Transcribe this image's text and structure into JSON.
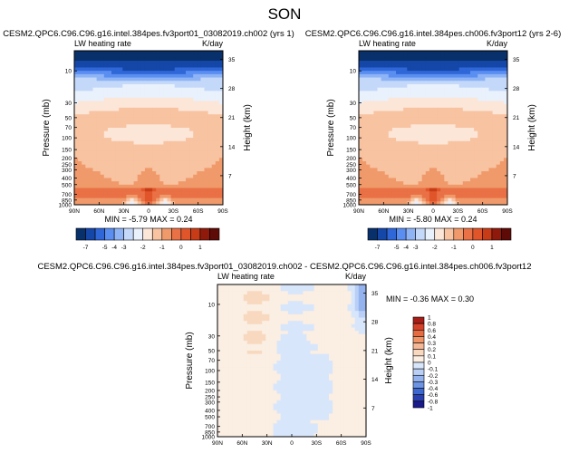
{
  "figure": {
    "title": "SON"
  },
  "colors": {
    "neg": [
      "#08306b",
      "#1547a8",
      "#2f67d8",
      "#5a8ef0",
      "#8fb4f6",
      "#c4d8f9",
      "#e9f1fc"
    ],
    "pos": [
      "#fce6d8",
      "#f8c3a1",
      "#f09a6b",
      "#e97145",
      "#e1552b",
      "#c73b17",
      "#8f1a0c",
      "#5e0a06"
    ],
    "diff": {
      "-1": "#1a1a8c",
      "-0.8": "#2a3fb0",
      "-0.6": "#3d68cf",
      "-0.4": "#6d94e3",
      "-0.3": "#93b2ee",
      "-0.2": "#b9cff6",
      "-0.1": "#d8e6fb",
      "0": "#fbeee2",
      "0.1": "#f8d9c0",
      "0.2": "#f5b896",
      "0.4": "#ef9568",
      "0.6": "#e66c43",
      "0.8": "#d4422a",
      "1": "#a71d17"
    }
  },
  "panels": [
    {
      "case": "CESM2.QPC6.C96.C96.g16.intel.384pes.fv3port01_03082019.ch002 (yrs 1)",
      "left_label": "LW heating rate",
      "right_label": "K/day",
      "ylabel": "Pressure (mb)",
      "ylabel_right": "Height (km)",
      "stats": "MIN = -5.79  MAX =  0.24"
    },
    {
      "case": "CESM2.QPC6.C96.C96.g16.intel.384pes.ch006.fv3port12 (yrs 2-6)",
      "left_label": "LW heating rate",
      "right_label": "K/day",
      "ylabel": "Pressure (mb)",
      "ylabel_right": "Height (km)",
      "stats": "MIN = -5.80  MAX =  0.24"
    },
    {
      "case": "CESM2.QPC6.C96.C96.g16.intel.384pes.fv3port01_03082019.ch002 - CESM2.QPC6.C96.C96.g16.intel.384pes.ch006.fv3port12",
      "left_label": "LW heating rate",
      "right_label": "K/day",
      "ylabel": "Pressure (mb)",
      "ylabel_right": "Height (km)",
      "stats": "MIN = -0.36  MAX =  0.30"
    }
  ],
  "chart_data": {
    "type": "heatmap",
    "title": "SON",
    "x_ticks": [
      "90N",
      "60N",
      "30N",
      "0",
      "30S",
      "60S",
      "90S"
    ],
    "y_ticks_pressure": [
      "10",
      "30",
      "50",
      "70",
      "100",
      "150",
      "200",
      "250",
      "300",
      "400",
      "500",
      "700",
      "850",
      "1000"
    ],
    "y_ticks_pressure_diff": [
      "10",
      "30",
      "50",
      "70",
      "100",
      "150",
      "200",
      "250",
      "300",
      "400",
      "500",
      "700",
      "850",
      "1000"
    ],
    "y_ticks_height": [
      "35",
      "28",
      "21",
      "14",
      "7"
    ],
    "colorbar_main": {
      "labels": [
        "-7",
        "-5",
        "-4",
        "-3",
        "-2",
        "-1",
        "0",
        "1"
      ],
      "levels": [
        -7.5,
        -6,
        -5,
        -4.5,
        -4,
        -3.5,
        -3,
        -2.5,
        -2,
        -1.5,
        -1,
        -0.5,
        0,
        0.5,
        1
      ]
    },
    "colorbar_diff": {
      "labels": [
        "1",
        "0.8",
        "0.6",
        "0.4",
        "0.3",
        "0.2",
        "0.1",
        "0",
        "-0.1",
        "-0.2",
        "-0.3",
        "-0.4",
        "-0.6",
        "-0.8",
        "-1"
      ]
    }
  }
}
